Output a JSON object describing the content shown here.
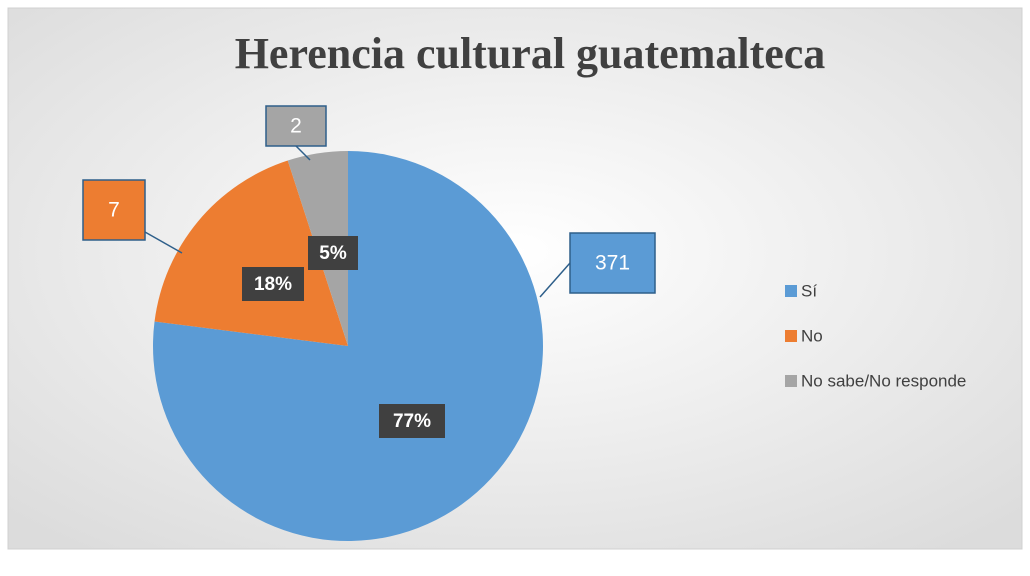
{
  "chart_data": {
    "type": "pie",
    "title": "Herencia cultural guatemalteca",
    "categories": [
      "Sí",
      "No",
      "No sabe/No responde"
    ],
    "values": [
      77,
      18,
      5
    ],
    "value_labels": [
      "77%",
      "18%",
      "5%"
    ],
    "counts": [
      371,
      7,
      2
    ],
    "colors": [
      "#5b9bd5",
      "#ed7d31",
      "#a5a5a5"
    ],
    "legend": "right"
  }
}
